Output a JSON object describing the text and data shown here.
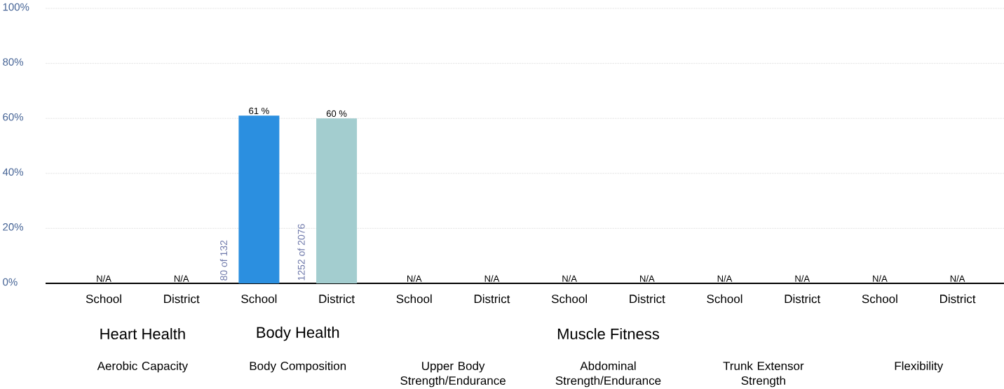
{
  "chart_data": {
    "type": "bar",
    "categories": [
      "School",
      "District",
      "School",
      "District",
      "School",
      "District",
      "School",
      "District",
      "School",
      "District",
      "School",
      "District"
    ],
    "values": [
      null,
      null,
      61,
      60,
      null,
      null,
      null,
      null,
      null,
      null,
      null,
      null
    ],
    "colors": [
      "#2b8fe0",
      "#a3cdcf",
      "#2b8fe0",
      "#a3cdcf",
      "#2b8fe0",
      "#a3cdcf",
      "#2b8fe0",
      "#a3cdcf",
      "#2b8fe0",
      "#a3cdcf",
      "#2b8fe0",
      "#a3cdcf"
    ],
    "value_labels": [
      "N/A",
      "N/A",
      "61 %",
      "60 %",
      "N/A",
      "N/A",
      "N/A",
      "N/A",
      "N/A",
      "N/A",
      "N/A",
      "N/A"
    ],
    "ylim": [
      0,
      100
    ],
    "yticks": [
      {
        "value": 0,
        "label": "0%"
      },
      {
        "value": 20,
        "label": "20%"
      },
      {
        "value": 40,
        "label": "40%"
      },
      {
        "value": 60,
        "label": "60%"
      },
      {
        "value": 80,
        "label": "80%"
      },
      {
        "value": 100,
        "label": "100%"
      }
    ],
    "grid": "y",
    "annotations": [
      "80 of 132",
      "1252 of 2076",
      "Heart Health",
      "Body Health",
      "Muscle Fitness",
      "Aerobic Capacity",
      "Body Composition",
      "Upper Body Strength/Endurance",
      "Abdominal Strength/Endurance",
      "Trunk Extensor Strength",
      "Flexibility"
    ]
  }
}
